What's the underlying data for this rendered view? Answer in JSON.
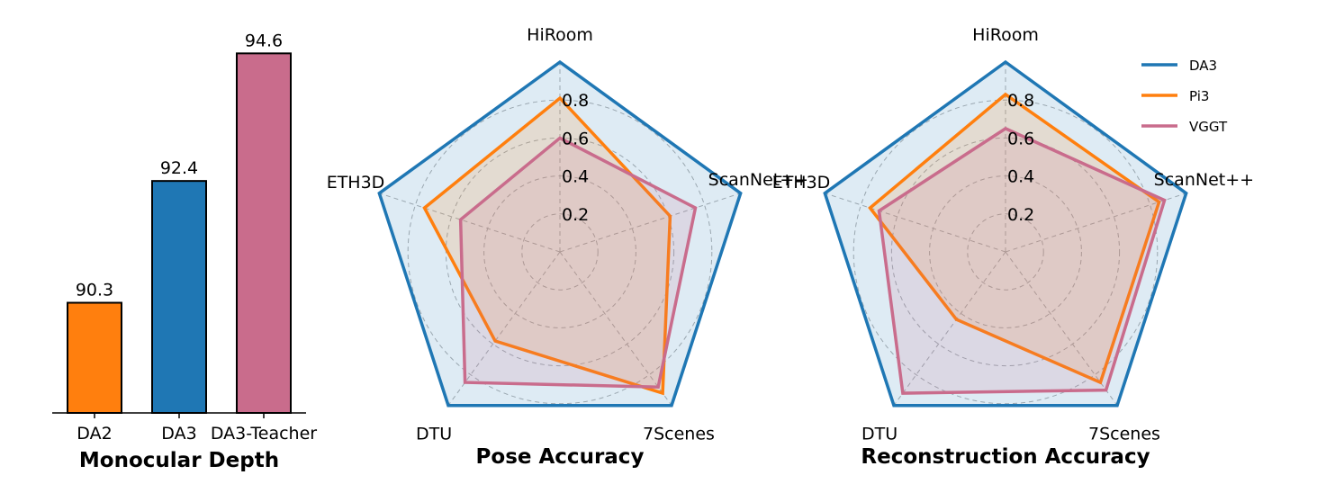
{
  "chart_data": [
    {
      "type": "bar",
      "title": "Monocular Depth",
      "categories": [
        "DA2",
        "DA3",
        "DA3-Teacher"
      ],
      "values": [
        90.3,
        92.4,
        94.6
      ],
      "value_labels": [
        "90.3",
        "92.4",
        "94.6"
      ],
      "colors": [
        "#ff7f0e",
        "#1f77b4",
        "#c96c8c"
      ],
      "ylim": [
        88.4,
        94.9
      ]
    },
    {
      "type": "radar",
      "title": "Pose Accuracy",
      "axes": [
        "HiRoom",
        "ScanNet++",
        "7Scenes",
        "DTU",
        "ETH3D"
      ],
      "ticks": [
        "0.2",
        "0.4",
        "0.6",
        "0.8"
      ],
      "rlim": [
        0,
        1
      ],
      "series": [
        {
          "name": "DA3",
          "color": "#1f77b4",
          "values": [
            1.0,
            1.0,
            1.0,
            1.0,
            1.0
          ]
        },
        {
          "name": "Pi3",
          "color": "#ff7f0e",
          "values": [
            0.81,
            0.61,
            0.92,
            0.58,
            0.75
          ]
        },
        {
          "name": "VGGT",
          "color": "#c96c8c",
          "values": [
            0.6,
            0.75,
            0.88,
            0.85,
            0.55
          ]
        }
      ]
    },
    {
      "type": "radar",
      "title": "Reconstruction Accuracy",
      "axes": [
        "HiRoom",
        "ScanNet++",
        "7Scenes",
        "DTU",
        "ETH3D"
      ],
      "ticks": [
        "0.2",
        "0.4",
        "0.6",
        "0.8"
      ],
      "rlim": [
        0,
        1
      ],
      "series": [
        {
          "name": "DA3",
          "color": "#1f77b4",
          "values": [
            1.0,
            1.0,
            1.0,
            1.0,
            1.0
          ]
        },
        {
          "name": "Pi3",
          "color": "#ff7f0e",
          "values": [
            0.83,
            0.85,
            0.85,
            0.44,
            0.75
          ]
        },
        {
          "name": "VGGT",
          "color": "#c96c8c",
          "values": [
            0.65,
            0.88,
            0.9,
            0.92,
            0.7
          ]
        }
      ]
    }
  ],
  "legend": {
    "placement": "top-right",
    "entries": [
      {
        "name": "DA3",
        "color": "#1f77b4"
      },
      {
        "name": "Pi3",
        "color": "#ff7f0e"
      },
      {
        "name": "VGGT",
        "color": "#c96c8c"
      }
    ]
  }
}
